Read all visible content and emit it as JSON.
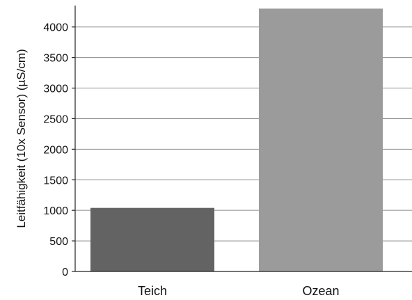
{
  "chart_data": {
    "type": "bar",
    "title": "",
    "xlabel": "",
    "ylabel": "Leitfähigkeit (10x Sensor) (µS/cm)",
    "categories": [
      "Teich",
      "Ozean"
    ],
    "values": [
      1040,
      4300
    ],
    "bar_colors": [
      "#636363",
      "#9b9b9b"
    ],
    "ylim": [
      0,
      4350
    ],
    "yticks": [
      0,
      500,
      1000,
      1500,
      2000,
      2500,
      3000,
      3500,
      4000
    ],
    "grid": true,
    "legend": "none"
  }
}
